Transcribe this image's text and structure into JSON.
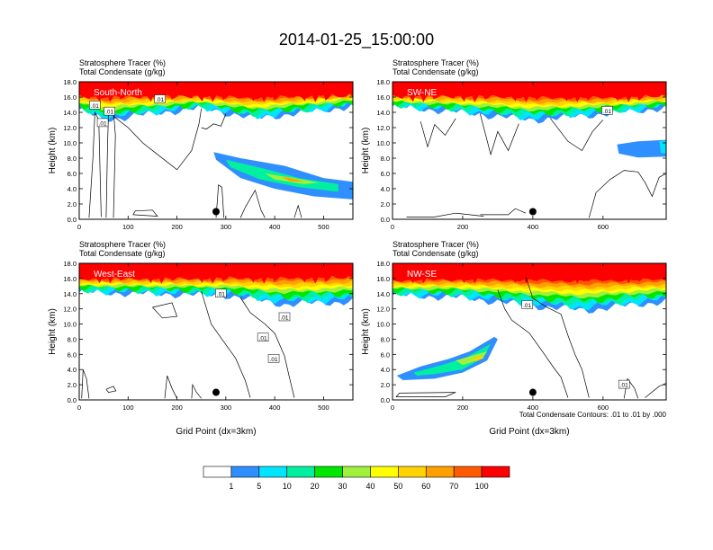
{
  "page": {
    "title": "2014-01-25_15:00:00",
    "contour_info": "Total Condensate Contours: .01 to .01 by .000"
  },
  "colorbar": {
    "labels": [
      "1",
      "5",
      "10",
      "20",
      "30",
      "40",
      "50",
      "60",
      "70",
      "100"
    ],
    "colors": [
      "#ffffff",
      "#2f8fff",
      "#00e5ff",
      "#00f0a0",
      "#00e600",
      "#a0f03c",
      "#ffff00",
      "#ffd200",
      "#ffa000",
      "#ff5a00",
      "#ff0000"
    ]
  },
  "chart_data": [
    {
      "type": "heatmap",
      "panel_label": "South-North",
      "title_lines": [
        "Stratosphere Tracer   (%)",
        "Total Condensate   (g/kg)"
      ],
      "ylabel": "Height (km)",
      "xlabel": "",
      "xlim": [
        0,
        560
      ],
      "ylim": [
        0,
        18
      ],
      "x_ticks": [
        "0",
        "100",
        "200",
        "300",
        "400",
        "500"
      ],
      "x_tick_values": [
        0,
        100,
        200,
        300,
        400,
        500
      ],
      "y_ticks": [
        "0.0",
        "2.0",
        "4.0",
        "6.0",
        "8.0",
        "10.0",
        "12.0",
        "14.0",
        "16.0",
        "18.0"
      ],
      "contour_labels": [
        ".01",
        ".01",
        ".01",
        ".01"
      ],
      "marker_x": 280,
      "marker_y": 1.0,
      "tracer_layer": {
        "bottom": [
          [
            0,
            14.4
          ],
          [
            50,
            13.0
          ],
          [
            120,
            13.6
          ],
          [
            250,
            14.6
          ],
          [
            360,
            13.2
          ],
          [
            460,
            14.0
          ],
          [
            560,
            14.8
          ]
        ],
        "top": [
          [
            0,
            16.6
          ],
          [
            120,
            16.7
          ],
          [
            300,
            16.5
          ],
          [
            450,
            16.6
          ],
          [
            560,
            16.8
          ]
        ]
      }
    },
    {
      "type": "heatmap",
      "panel_label": "SW-NE",
      "title_lines": [
        "Stratosphere Tracer   (%)",
        "Total Condensate   (g/kg)"
      ],
      "ylabel": "Height (km)",
      "xlabel": "",
      "xlim": [
        0,
        780
      ],
      "ylim": [
        0,
        18
      ],
      "x_ticks": [
        "0",
        "200",
        "400",
        "600"
      ],
      "x_tick_values": [
        0,
        200,
        400,
        600
      ],
      "y_ticks": [
        "0.0",
        "2.0",
        "4.0",
        "6.0",
        "8.0",
        "10.0",
        "12.0",
        "14.0",
        "16.0",
        "18.0"
      ],
      "contour_labels": [
        ".01"
      ],
      "marker_x": 400,
      "marker_y": 1.0,
      "tracer_layer": {
        "bottom": [
          [
            0,
            14.8
          ],
          [
            200,
            14.0
          ],
          [
            400,
            13.0
          ],
          [
            600,
            13.8
          ],
          [
            780,
            14.6
          ]
        ],
        "top": [
          [
            0,
            16.5
          ],
          [
            300,
            16.7
          ],
          [
            600,
            16.4
          ],
          [
            780,
            16.6
          ]
        ]
      }
    },
    {
      "type": "heatmap",
      "panel_label": "West-East",
      "title_lines": [
        "Stratosphere Tracer   (%)",
        "Total Condensate   (g/kg)"
      ],
      "ylabel": "Height (km)",
      "xlabel": "Grid Point (dx=3km)",
      "xlim": [
        0,
        560
      ],
      "ylim": [
        0,
        18
      ],
      "x_ticks": [
        "0",
        "100",
        "200",
        "300",
        "400",
        "500"
      ],
      "x_tick_values": [
        0,
        100,
        200,
        300,
        400,
        500
      ],
      "y_ticks": [
        "0.0",
        "2.0",
        "4.0",
        "6.0",
        "8.0",
        "10.0",
        "12.0",
        "14.0",
        "16.0",
        "18.0"
      ],
      "contour_labels": [
        ".01",
        ".01",
        ".01",
        ".01"
      ],
      "marker_x": 280,
      "marker_y": 1.0,
      "tracer_layer": {
        "bottom": [
          [
            0,
            14.2
          ],
          [
            150,
            14.0
          ],
          [
            300,
            13.8
          ],
          [
            420,
            12.6
          ],
          [
            500,
            12.8
          ],
          [
            560,
            13.0
          ]
        ],
        "top": [
          [
            0,
            16.4
          ],
          [
            250,
            16.5
          ],
          [
            400,
            16.8
          ],
          [
            560,
            17.0
          ]
        ]
      }
    },
    {
      "type": "heatmap",
      "panel_label": "NW-SE",
      "title_lines": [
        "Stratosphere Tracer   (%)",
        "Total Condensate   (g/kg)"
      ],
      "ylabel": "Height (km)",
      "xlabel": "Grid Point (dx=3km)",
      "xlim": [
        0,
        780
      ],
      "ylim": [
        0,
        18
      ],
      "x_ticks": [
        "0",
        "200",
        "400",
        "600"
      ],
      "x_tick_values": [
        0,
        200,
        400,
        600
      ],
      "y_ticks": [
        "0.0",
        "2.0",
        "4.0",
        "6.0",
        "8.0",
        "10.0",
        "12.0",
        "14.0",
        "16.0",
        "18.0"
      ],
      "contour_labels": [
        ".01",
        ".01"
      ],
      "marker_x": 400,
      "marker_y": 1.0,
      "tracer_layer": {
        "bottom": [
          [
            0,
            13.8
          ],
          [
            200,
            13.5
          ],
          [
            400,
            12.4
          ],
          [
            550,
            11.8
          ],
          [
            700,
            12.6
          ],
          [
            780,
            13.0
          ]
        ],
        "top": [
          [
            0,
            16.2
          ],
          [
            300,
            16.5
          ],
          [
            600,
            16.6
          ],
          [
            780,
            16.5
          ]
        ]
      }
    }
  ]
}
